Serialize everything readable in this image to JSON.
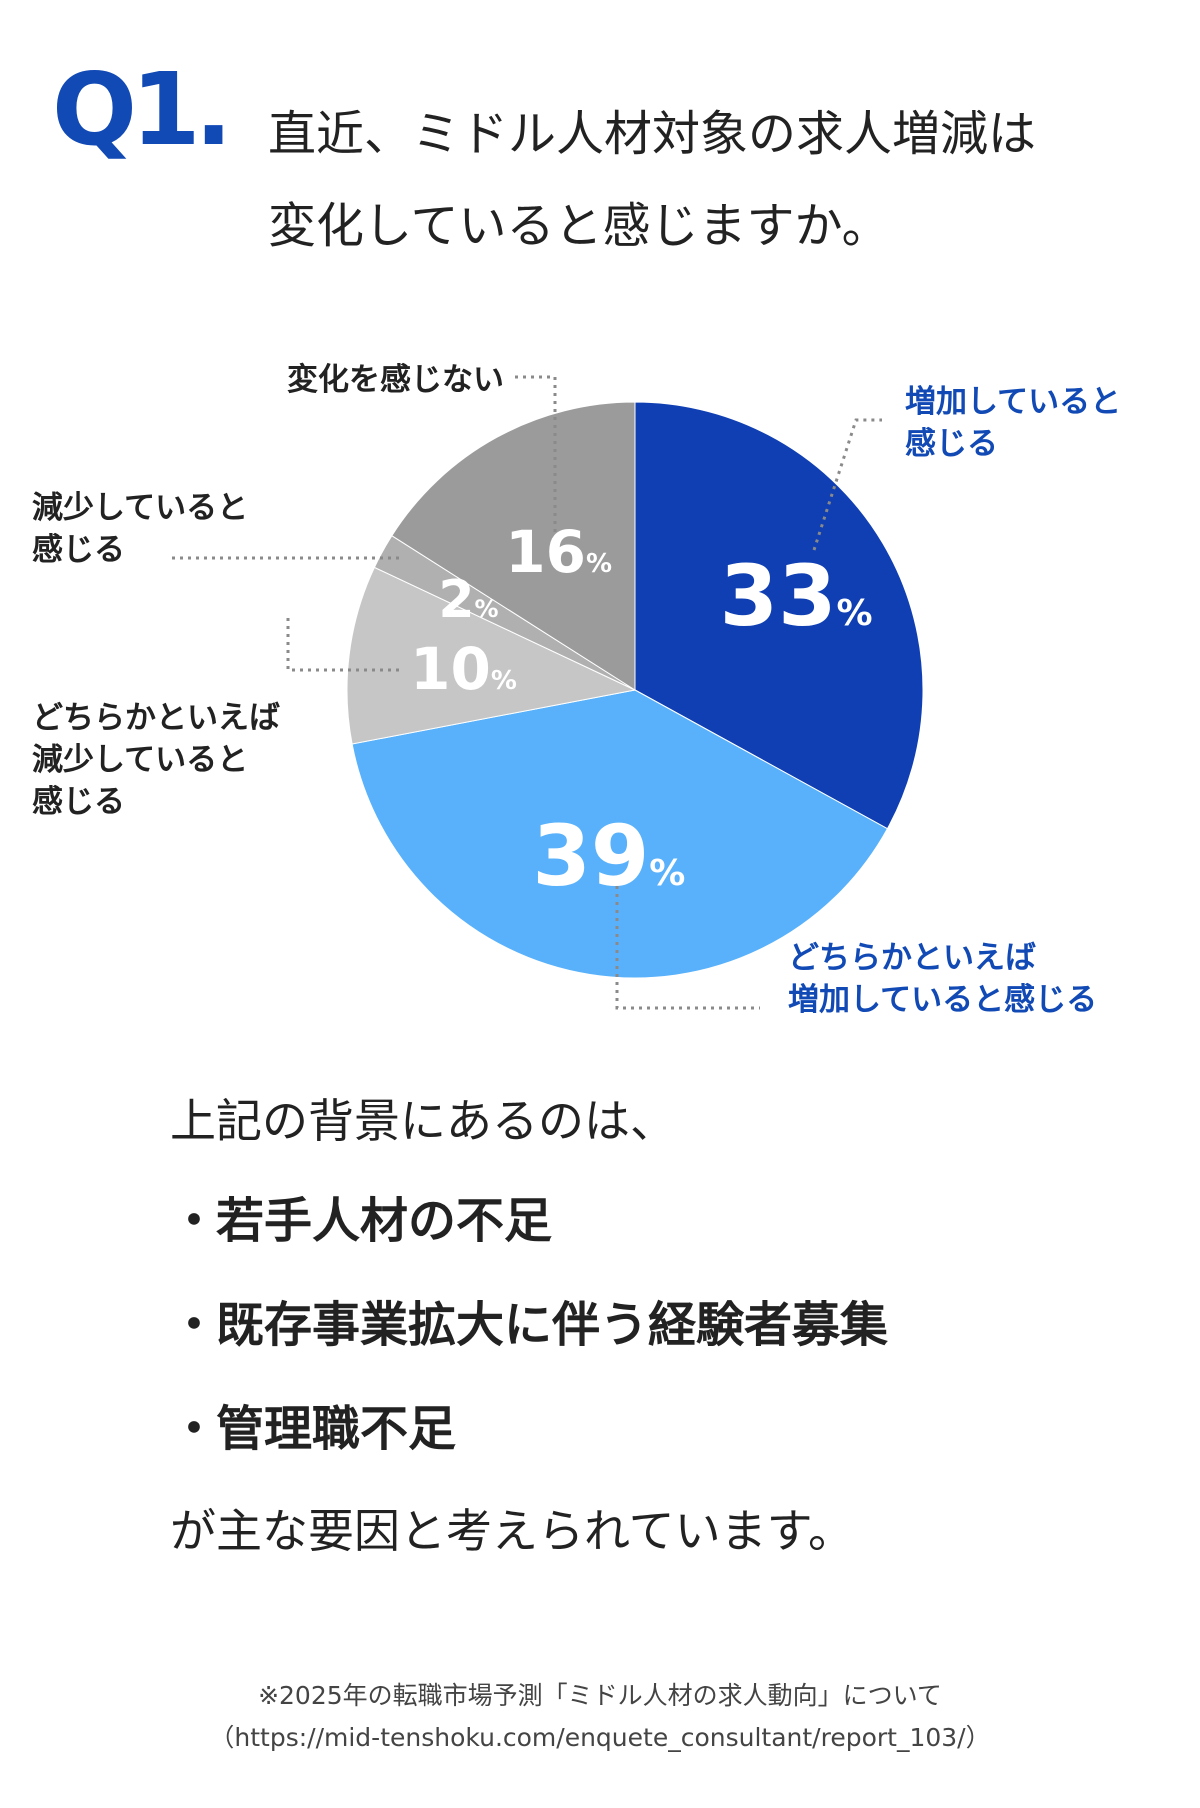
{
  "header": {
    "q_label": "Q1.",
    "question_lines": [
      "直近、ミドル人材対象の求人増減は",
      "変化していると感じますか。"
    ]
  },
  "chart_data": {
    "type": "pie",
    "slices": [
      {
        "name": "増加していると感じる",
        "value": 33,
        "color": "#0f3fb3",
        "label_color": "#ffffff"
      },
      {
        "name": "どちらかといえば増加していると感じる",
        "value": 39,
        "color": "#58b1fa",
        "label_color": "#ffffff"
      },
      {
        "name": "どちらかといえば減少していると感じる",
        "value": 10,
        "color": "#c6c6c6",
        "label_color": "#ffffff"
      },
      {
        "name": "減少していると感じる",
        "value": 2,
        "color": "#b0b0b0",
        "label_color": "#ffffff"
      },
      {
        "name": "変化を感じない",
        "value": 16,
        "color": "#9b9b9b",
        "label_color": "#ffffff"
      }
    ],
    "percent_sign": "%",
    "callouts": [
      {
        "lines": [
          "増加していると",
          "感じる"
        ],
        "color": "#1149b5"
      },
      {
        "lines": [
          "どちらかといえば",
          "増加していると感じる"
        ],
        "color": "#1149b5"
      },
      {
        "lines": [
          "どちらかといえば",
          "減少していると",
          "感じる"
        ],
        "color": "#222222"
      },
      {
        "lines": [
          "減少していると",
          "感じる"
        ],
        "color": "#222222"
      },
      {
        "lines": [
          "変化を感じない"
        ],
        "color": "#222222"
      }
    ]
  },
  "body": {
    "intro": "上記の背景にあるのは、",
    "bullet": "・",
    "reasons": [
      "若手人材の不足",
      "既存事業拡大に伴う経験者募集",
      "管理職不足"
    ],
    "outro": "が主な要因と考えられています。"
  },
  "source": {
    "line1": "※2025年の転職市場予測「ミドル人材の求人動向」について",
    "line2": "（https://mid-tenshoku.com/enquete_consultant/report_103/）"
  }
}
